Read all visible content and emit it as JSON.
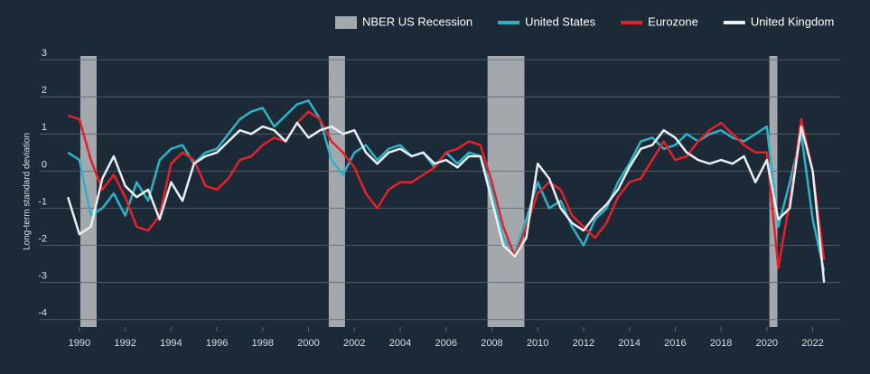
{
  "chart_data": {
    "type": "line",
    "y_label": "Long-term standard deviation",
    "recessions": {
      "name": "NBER US Recession",
      "color": "#a3a8ad",
      "periods": [
        [
          1990.04,
          1990.75
        ],
        [
          2000.88,
          2001.59
        ],
        [
          2007.81,
          2009.42
        ],
        [
          2020.11,
          2020.46
        ]
      ]
    },
    "x": [
      1989.5,
      1990,
      1990.5,
      1991,
      1991.5,
      1992,
      1992.5,
      1993,
      1993.5,
      1994,
      1994.5,
      1995,
      1995.5,
      1996,
      1996.5,
      1997,
      1997.5,
      1998,
      1998.5,
      1999,
      1999.5,
      2000,
      2000.5,
      2001,
      2001.5,
      2002,
      2002.5,
      2003,
      2003.5,
      2004,
      2004.5,
      2005,
      2005.5,
      2006,
      2006.5,
      2007,
      2007.5,
      2008,
      2008.5,
      2009,
      2009.5,
      2010,
      2010.5,
      2011,
      2011.5,
      2012,
      2012.5,
      2013,
      2013.5,
      2014,
      2014.5,
      2015,
      2015.5,
      2016,
      2016.5,
      2017,
      2017.5,
      2018,
      2018.5,
      2019,
      2019.5,
      2020,
      2020.5,
      2021,
      2021.5,
      2022,
      2022.5
    ],
    "series": [
      {
        "name": "United States",
        "color": "#2ab3c6",
        "values": [
          0.5,
          0.3,
          -1.2,
          -1.0,
          -0.6,
          -1.2,
          -0.3,
          -0.8,
          0.3,
          0.6,
          0.7,
          0.2,
          0.5,
          0.6,
          1.0,
          1.4,
          1.6,
          1.7,
          1.2,
          1.5,
          1.8,
          1.9,
          1.4,
          0.3,
          -0.1,
          0.5,
          0.7,
          0.3,
          0.6,
          0.7,
          0.4,
          0.5,
          0.1,
          0.5,
          0.2,
          0.5,
          0.4,
          -0.5,
          -1.8,
          -2.2,
          -1.3,
          -0.3,
          -1.0,
          -0.8,
          -1.5,
          -2.0,
          -1.3,
          -1.0,
          -0.3,
          0.2,
          0.8,
          0.9,
          0.6,
          0.7,
          1.0,
          0.8,
          1.0,
          1.1,
          0.9,
          0.8,
          1.0,
          1.2,
          -1.5,
          -0.3,
          1.0,
          -1.3,
          -2.7
        ]
      },
      {
        "name": "Eurozone",
        "color": "#e3212b",
        "values": [
          1.5,
          1.4,
          0.3,
          -0.5,
          -0.1,
          -0.7,
          -1.5,
          -1.6,
          -1.2,
          0.2,
          0.5,
          0.3,
          -0.4,
          -0.5,
          -0.2,
          0.3,
          0.4,
          0.7,
          0.9,
          0.8,
          1.3,
          1.6,
          1.4,
          0.8,
          0.5,
          0.1,
          -0.6,
          -1.0,
          -0.5,
          -0.3,
          -0.3,
          -0.1,
          0.1,
          0.5,
          0.6,
          0.8,
          0.7,
          -0.3,
          -1.5,
          -2.3,
          -1.5,
          -0.6,
          -0.3,
          -0.5,
          -1.2,
          -1.5,
          -1.8,
          -1.4,
          -0.7,
          -0.3,
          -0.2,
          0.3,
          0.8,
          0.3,
          0.4,
          0.8,
          1.1,
          1.3,
          1.0,
          0.7,
          0.5,
          0.5,
          -2.6,
          -0.8,
          1.4,
          0.0,
          -2.4
        ]
      },
      {
        "name": "United Kingdom",
        "color": "#e8eef2",
        "values": [
          -0.7,
          -1.7,
          -1.5,
          -0.2,
          0.4,
          -0.4,
          -0.7,
          -0.5,
          -1.3,
          -0.3,
          -0.8,
          0.2,
          0.4,
          0.5,
          0.8,
          1.1,
          1.0,
          1.2,
          1.1,
          0.8,
          1.3,
          0.9,
          1.1,
          1.2,
          1.0,
          1.1,
          0.5,
          0.2,
          0.5,
          0.6,
          0.4,
          0.5,
          0.2,
          0.3,
          0.1,
          0.4,
          0.4,
          -0.8,
          -2.0,
          -2.3,
          -1.8,
          0.2,
          -0.2,
          -1.0,
          -1.4,
          -1.6,
          -1.2,
          -0.9,
          -0.5,
          0.1,
          0.6,
          0.7,
          1.1,
          0.9,
          0.5,
          0.3,
          0.2,
          0.3,
          0.2,
          0.4,
          -0.3,
          0.3,
          -1.3,
          -1.0,
          1.2,
          0.0,
          -3.0
        ]
      }
    ],
    "xlim": [
      1988.9,
      2023.2
    ],
    "xticks": [
      1990,
      1992,
      1994,
      1996,
      1998,
      2000,
      2002,
      2004,
      2006,
      2008,
      2010,
      2012,
      2014,
      2016,
      2018,
      2020,
      2022
    ],
    "ylim": [
      -4.2,
      3.1
    ],
    "yticks": [
      -4,
      -3,
      -2,
      -1,
      0,
      1,
      2,
      3
    ],
    "grid": true,
    "legend": "top-right"
  }
}
